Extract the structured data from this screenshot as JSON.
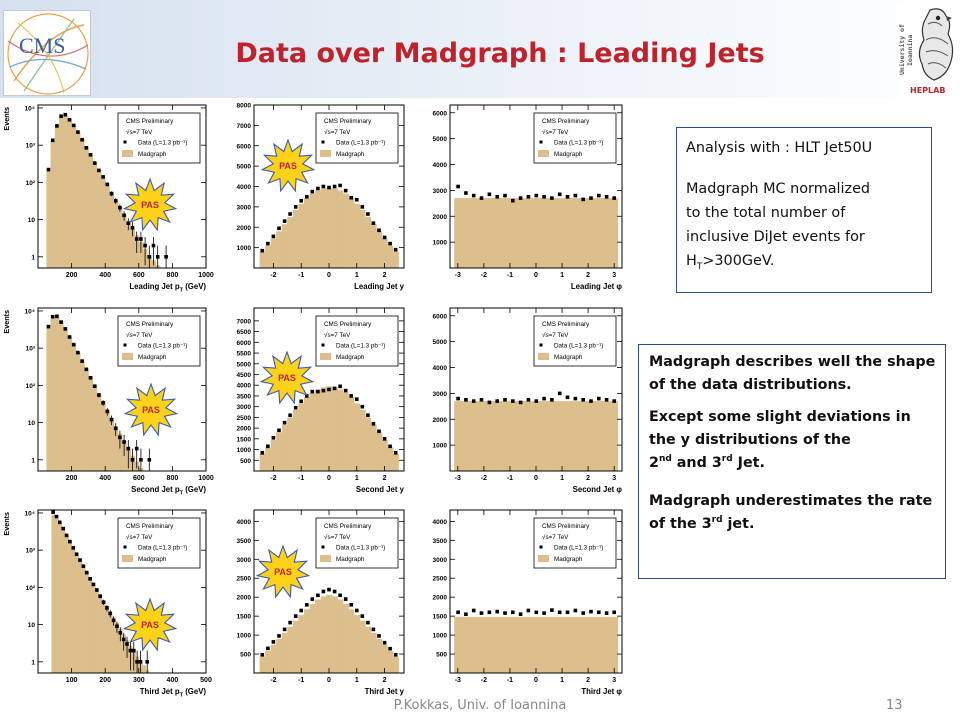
{
  "title": "Data over Madgraph : Leading Jets",
  "logos": {
    "left": "CMS",
    "right_vertical": "University of Ioannina",
    "right_lab": "HEPLAB"
  },
  "legend": {
    "header": "CMS Preliminary",
    "energy": "√s=7 TeV",
    "data": "Data (L=1.3 pb⁻¹)",
    "mc": "Madgraph"
  },
  "stamp_label": "PAS",
  "info_box": {
    "line1": "Analysis with : HLT Jet50U",
    "line2": "Madgraph MC normalized",
    "line3": "to the total number of",
    "line4": "inclusive DiJet events for",
    "line5_prefix": "H",
    "line5_sub": "T",
    "line5_rest": ">300GeV."
  },
  "desc_box": {
    "p1": "Madgraph describes well the shape of the data distributions.",
    "p2_a": "Except some slight deviations in the y distributions of the",
    "p2_b_pre": "2",
    "p2_b_sup1": "nd",
    "p2_b_mid": " and 3",
    "p2_b_sup2": "rd",
    "p2_b_post": " Jet.",
    "p3_a": "Madgraph underestimates the rate of the 3",
    "p3_sup": "rd",
    "p3_post": " jet."
  },
  "footer": {
    "author": "P.Kokkas, Univ. of Ioannina",
    "page": "13"
  },
  "colors": {
    "title": "#c0222b",
    "mc_fill": "#dcbf8c",
    "data_marker": "#000000",
    "stamp_fill": "#ffd21a",
    "stamp_stroke": "#3a5bb0",
    "box_border": "#2b4b8c"
  },
  "chart_data": [
    {
      "type": "histogram",
      "row": 0,
      "col": 0,
      "log_y": true,
      "ylabel": "Events",
      "xlabel": "Leading Jet p",
      "xlabel_sub": "T",
      "xlabel_unit": " (GeV)",
      "xlim": [
        0,
        1000
      ],
      "ylim": [
        0.5,
        12000
      ],
      "xticks": [
        200,
        400,
        600,
        800,
        1000
      ],
      "yticks": [
        {
          "v": 1,
          "t": "1"
        },
        {
          "v": 10,
          "t": "10"
        },
        {
          "v": 100,
          "t": "10²"
        },
        {
          "v": 1000,
          "t": "10³"
        },
        {
          "v": 10000,
          "t": "10⁴"
        }
      ],
      "bin_edges": [
        50,
        75,
        100,
        125,
        150,
        175,
        200,
        225,
        250,
        275,
        300,
        325,
        350,
        375,
        400,
        425,
        450,
        475,
        500,
        525,
        550,
        575,
        600,
        625,
        650,
        675,
        700,
        725,
        750,
        775,
        800
      ],
      "mc": [
        200,
        1300,
        3200,
        5600,
        6300,
        5000,
        3500,
        2300,
        1450,
        900,
        560,
        350,
        215,
        135,
        85,
        54,
        34,
        22,
        14,
        9,
        5.8,
        3.8,
        2.5,
        1.6,
        1.1,
        0.8,
        0.6,
        0.5,
        0.5,
        0.5
      ],
      "data": [
        220,
        1350,
        3300,
        6000,
        6600,
        4800,
        3400,
        2250,
        1400,
        850,
        550,
        330,
        210,
        140,
        88,
        50,
        32,
        21,
        13,
        8,
        6,
        3,
        3,
        2,
        1,
        2,
        1,
        0,
        1,
        0
      ],
      "stamp": [
        150,
        205
      ]
    },
    {
      "type": "histogram",
      "row": 0,
      "col": 1,
      "log_y": false,
      "ylabel": "",
      "xlabel": "Leading Jet y",
      "xlabel_sub": "",
      "xlabel_unit": "",
      "xlim": [
        -2.7,
        2.7
      ],
      "ylim": [
        0,
        8000
      ],
      "xticks": [
        -2,
        -1,
        0,
        1,
        2
      ],
      "yticks": [
        {
          "v": 1000,
          "t": "1000"
        },
        {
          "v": 2000,
          "t": "2000"
        },
        {
          "v": 3000,
          "t": "3000"
        },
        {
          "v": 4000,
          "t": "4000"
        },
        {
          "v": 5000,
          "t": "5000"
        },
        {
          "v": 6000,
          "t": "6000"
        },
        {
          "v": 7000,
          "t": "7000"
        },
        {
          "v": 8000,
          "t": "8000"
        }
      ],
      "bin_edges": [
        -2.5,
        -2.3,
        -2.1,
        -1.9,
        -1.7,
        -1.5,
        -1.3,
        -1.1,
        -0.9,
        -0.7,
        -0.5,
        -0.3,
        -0.1,
        0.1,
        0.3,
        0.5,
        0.7,
        0.9,
        1.1,
        1.3,
        1.5,
        1.7,
        1.9,
        2.1,
        2.3,
        2.5
      ],
      "mc": [
        800,
        1100,
        1450,
        1800,
        2150,
        2500,
        2850,
        3150,
        3450,
        3650,
        3800,
        3900,
        3920,
        3900,
        3800,
        3650,
        3450,
        3150,
        2850,
        2500,
        2150,
        1800,
        1450,
        1100,
        800
      ],
      "data": [
        850,
        1200,
        1550,
        1950,
        2300,
        2650,
        3000,
        3300,
        3500,
        3750,
        3900,
        4000,
        3950,
        4000,
        4050,
        3800,
        3450,
        3350,
        3000,
        2650,
        2200,
        1850,
        1500,
        1200,
        900
      ],
      "stamp": [
        288,
        166
      ]
    },
    {
      "type": "histogram",
      "row": 0,
      "col": 2,
      "log_y": false,
      "ylabel": "",
      "xlabel": "Leading Jet φ",
      "xlabel_sub": "",
      "xlabel_unit": "",
      "xlim": [
        -3.3,
        3.3
      ],
      "ylim": [
        0,
        6300
      ],
      "xticks": [
        -3,
        -2,
        -1,
        0,
        1,
        2,
        3
      ],
      "yticks": [
        {
          "v": 1000,
          "t": "1000"
        },
        {
          "v": 2000,
          "t": "2000"
        },
        {
          "v": 3000,
          "t": "3000"
        },
        {
          "v": 4000,
          "t": "4000"
        },
        {
          "v": 5000,
          "t": "5000"
        },
        {
          "v": 6000,
          "t": "6000"
        }
      ],
      "bin_edges": [
        -3.14,
        -2.84,
        -2.54,
        -2.24,
        -1.94,
        -1.64,
        -1.34,
        -1.04,
        -0.74,
        -0.44,
        -0.14,
        0.16,
        0.46,
        0.76,
        1.06,
        1.36,
        1.66,
        1.96,
        2.26,
        2.56,
        2.86,
        3.14
      ],
      "mc": [
        2700,
        2700,
        2700,
        2700,
        2700,
        2700,
        2700,
        2700,
        2700,
        2700,
        2700,
        2700,
        2700,
        2700,
        2700,
        2700,
        2700,
        2700,
        2700,
        2700,
        2700
      ],
      "data": [
        3150,
        2900,
        2800,
        2700,
        2850,
        2750,
        2800,
        2600,
        2700,
        2750,
        2800,
        2750,
        2700,
        2850,
        2750,
        2800,
        2650,
        2700,
        2800,
        2750,
        2700
      ],
      "stamp": null
    },
    {
      "type": "histogram",
      "row": 1,
      "col": 0,
      "log_y": true,
      "ylabel": "Events",
      "xlabel": "Second Jet p",
      "xlabel_sub": "T",
      "xlabel_unit": " (GeV)",
      "xlim": [
        0,
        1000
      ],
      "ylim": [
        0.5,
        12000
      ],
      "xticks": [
        200,
        400,
        600,
        800,
        1000
      ],
      "yticks": [
        {
          "v": 1,
          "t": "1"
        },
        {
          "v": 10,
          "t": "10"
        },
        {
          "v": 100,
          "t": "10²"
        },
        {
          "v": 1000,
          "t": "10³"
        },
        {
          "v": 10000,
          "t": "10⁴"
        }
      ],
      "bin_edges": [
        50,
        75,
        100,
        125,
        150,
        175,
        200,
        225,
        250,
        275,
        300,
        325,
        350,
        375,
        400,
        425,
        450,
        475,
        500,
        525,
        550,
        575,
        600,
        625,
        650,
        675,
        700
      ],
      "mc": [
        3500,
        6500,
        6800,
        5200,
        3400,
        2100,
        1300,
        780,
        470,
        280,
        170,
        100,
        60,
        36,
        22,
        13,
        8,
        5,
        3.2,
        2,
        1.3,
        0.9,
        0.6,
        0.5,
        0.5,
        0.5
      ],
      "data": [
        3800,
        7000,
        7200,
        5000,
        3300,
        2000,
        1250,
        760,
        450,
        270,
        160,
        95,
        55,
        34,
        20,
        12,
        7,
        4,
        3,
        2,
        1,
        2,
        1,
        0,
        1,
        0
      ],
      "stamp": [
        151,
        410
      ]
    },
    {
      "type": "histogram",
      "row": 1,
      "col": 1,
      "log_y": false,
      "ylabel": "",
      "xlabel": "Second Jet y",
      "xlabel_sub": "",
      "xlabel_unit": "",
      "xlim": [
        -2.7,
        2.7
      ],
      "ylim": [
        0,
        7600
      ],
      "xticks": [
        -2,
        -1,
        0,
        1,
        2
      ],
      "yticks": [
        {
          "v": 500,
          "t": "500"
        },
        {
          "v": 1000,
          "t": "1000"
        },
        {
          "v": 1500,
          "t": "1500"
        },
        {
          "v": 2000,
          "t": "2000"
        },
        {
          "v": 2500,
          "t": "2500"
        },
        {
          "v": 3000,
          "t": "3000"
        },
        {
          "v": 3500,
          "t": "3500"
        },
        {
          "v": 4000,
          "t": "4000"
        },
        {
          "v": 4500,
          "t": "4500"
        },
        {
          "v": 5000,
          "t": "5000"
        },
        {
          "v": 5500,
          "t": "5500"
        },
        {
          "v": 6000,
          "t": "6000"
        },
        {
          "v": 6500,
          "t": "6500"
        },
        {
          "v": 7000,
          "t": "7000"
        }
      ],
      "bin_edges": [
        -2.5,
        -2.3,
        -2.1,
        -1.9,
        -1.7,
        -1.5,
        -1.3,
        -1.1,
        -0.9,
        -0.7,
        -0.5,
        -0.3,
        -0.1,
        0.1,
        0.3,
        0.5,
        0.7,
        0.9,
        1.1,
        1.3,
        1.5,
        1.7,
        1.9,
        2.1,
        2.3,
        2.5
      ],
      "mc": [
        800,
        1100,
        1450,
        1800,
        2150,
        2500,
        2850,
        3150,
        3450,
        3650,
        3800,
        3900,
        3950,
        3900,
        3800,
        3650,
        3450,
        3150,
        2850,
        2500,
        2150,
        1800,
        1450,
        1100,
        800
      ],
      "data": [
        850,
        1150,
        1550,
        1900,
        2250,
        2600,
        2950,
        3250,
        3500,
        3700,
        3700,
        3750,
        3800,
        3850,
        3950,
        3750,
        3500,
        3350,
        3000,
        2600,
        2200,
        1850,
        1500,
        1150,
        850
      ],
      "stamp": [
        287,
        378
      ]
    },
    {
      "type": "histogram",
      "row": 1,
      "col": 2,
      "log_y": false,
      "ylabel": "",
      "xlabel": "Second Jet φ",
      "xlabel_sub": "",
      "xlabel_unit": "",
      "xlim": [
        -3.3,
        3.3
      ],
      "ylim": [
        0,
        6300
      ],
      "xticks": [
        -3,
        -2,
        -1,
        0,
        1,
        2,
        3
      ],
      "yticks": [
        {
          "v": 1000,
          "t": "1000"
        },
        {
          "v": 2000,
          "t": "2000"
        },
        {
          "v": 3000,
          "t": "3000"
        },
        {
          "v": 4000,
          "t": "4000"
        },
        {
          "v": 5000,
          "t": "5000"
        },
        {
          "v": 6000,
          "t": "6000"
        }
      ],
      "bin_edges": [
        -3.14,
        -2.84,
        -2.54,
        -2.24,
        -1.94,
        -1.64,
        -1.34,
        -1.04,
        -0.74,
        -0.44,
        -0.14,
        0.16,
        0.46,
        0.76,
        1.06,
        1.36,
        1.66,
        1.96,
        2.26,
        2.56,
        2.86,
        3.14
      ],
      "mc": [
        2700,
        2700,
        2700,
        2700,
        2700,
        2700,
        2700,
        2700,
        2700,
        2700,
        2700,
        2700,
        2700,
        2700,
        2700,
        2700,
        2700,
        2700,
        2700,
        2700,
        2700
      ],
      "data": [
        2800,
        2750,
        2700,
        2750,
        2650,
        2700,
        2750,
        2700,
        2650,
        2750,
        2700,
        2800,
        2750,
        3000,
        2850,
        2800,
        2750,
        2700,
        2800,
        2750,
        2700
      ],
      "stamp": null
    },
    {
      "type": "histogram",
      "row": 2,
      "col": 0,
      "log_y": true,
      "ylabel": "Events",
      "xlabel": "Third Jet p",
      "xlabel_sub": "T",
      "xlabel_unit": " (GeV)",
      "xlim": [
        0,
        500
      ],
      "ylim": [
        0.5,
        12000
      ],
      "xticks": [
        100,
        200,
        300,
        400,
        500
      ],
      "yticks": [
        {
          "v": 1,
          "t": "1"
        },
        {
          "v": 10,
          "t": "10"
        },
        {
          "v": 100,
          "t": "10²"
        },
        {
          "v": 1000,
          "t": "10³"
        },
        {
          "v": 10000,
          "t": "10⁴"
        }
      ],
      "bin_edges": [
        40,
        50,
        60,
        70,
        80,
        90,
        100,
        110,
        120,
        130,
        140,
        150,
        160,
        170,
        180,
        190,
        200,
        210,
        220,
        230,
        240,
        250,
        260,
        270,
        280,
        290,
        300,
        310,
        320,
        330,
        340,
        350
      ],
      "mc": [
        9000,
        7000,
        5000,
        3500,
        2400,
        1650,
        1150,
        800,
        560,
        390,
        270,
        190,
        130,
        92,
        64,
        45,
        32,
        22,
        15.5,
        11,
        7.7,
        5.4,
        3.8,
        2.7,
        1.9,
        1.4,
        1,
        0.8,
        0.6,
        0.5,
        0.5
      ],
      "data": [
        10500,
        8000,
        5600,
        3800,
        2500,
        1700,
        1150,
        780,
        540,
        370,
        250,
        170,
        120,
        85,
        58,
        40,
        28,
        20,
        13,
        9,
        6,
        4,
        3,
        2,
        2,
        1,
        1,
        0,
        1,
        0,
        0
      ],
      "stamp": [
        150,
        625
      ]
    },
    {
      "type": "histogram",
      "row": 2,
      "col": 1,
      "log_y": false,
      "ylabel": "",
      "xlabel": "Third Jet y",
      "xlabel_sub": "",
      "xlabel_unit": "",
      "xlim": [
        -2.7,
        2.7
      ],
      "ylim": [
        0,
        4300
      ],
      "xticks": [
        -2,
        -1,
        0,
        1,
        2
      ],
      "yticks": [
        {
          "v": 500,
          "t": "500"
        },
        {
          "v": 1000,
          "t": "1000"
        },
        {
          "v": 1500,
          "t": "1500"
        },
        {
          "v": 2000,
          "t": "2000"
        },
        {
          "v": 2500,
          "t": "2500"
        },
        {
          "v": 3000,
          "t": "3000"
        },
        {
          "v": 3500,
          "t": "3500"
        },
        {
          "v": 4000,
          "t": "4000"
        }
      ],
      "bin_edges": [
        -2.5,
        -2.3,
        -2.1,
        -1.9,
        -1.7,
        -1.5,
        -1.3,
        -1.1,
        -0.9,
        -0.7,
        -0.5,
        -0.3,
        -0.1,
        0.1,
        0.3,
        0.5,
        0.7,
        0.9,
        1.1,
        1.3,
        1.5,
        1.7,
        1.9,
        2.1,
        2.3,
        2.5
      ],
      "mc": [
        430,
        580,
        740,
        900,
        1060,
        1220,
        1380,
        1530,
        1680,
        1820,
        1940,
        2020,
        2060,
        2020,
        1940,
        1820,
        1680,
        1530,
        1380,
        1220,
        1060,
        900,
        740,
        580,
        430
      ],
      "data": [
        480,
        650,
        820,
        980,
        1150,
        1330,
        1500,
        1650,
        1800,
        1950,
        2050,
        2150,
        2200,
        2150,
        2050,
        1950,
        1800,
        1650,
        1500,
        1330,
        1150,
        980,
        800,
        640,
        480
      ],
      "stamp": [
        283,
        572
      ]
    },
    {
      "type": "histogram",
      "row": 2,
      "col": 2,
      "log_y": false,
      "ylabel": "",
      "xlabel": "Third Jet φ",
      "xlabel_sub": "",
      "xlabel_unit": "",
      "xlim": [
        -3.3,
        3.3
      ],
      "ylim": [
        0,
        4300
      ],
      "xticks": [
        -3,
        -2,
        -1,
        0,
        1,
        2,
        3
      ],
      "yticks": [
        {
          "v": 500,
          "t": "500"
        },
        {
          "v": 1000,
          "t": "1000"
        },
        {
          "v": 1500,
          "t": "1500"
        },
        {
          "v": 2000,
          "t": "2000"
        },
        {
          "v": 2500,
          "t": "2500"
        },
        {
          "v": 3000,
          "t": "3000"
        },
        {
          "v": 3500,
          "t": "3500"
        },
        {
          "v": 4000,
          "t": "4000"
        }
      ],
      "bin_edges": [
        -3.14,
        -2.84,
        -2.54,
        -2.24,
        -1.94,
        -1.64,
        -1.34,
        -1.04,
        -0.74,
        -0.44,
        -0.14,
        0.16,
        0.46,
        0.76,
        1.06,
        1.36,
        1.66,
        1.96,
        2.26,
        2.56,
        2.86,
        3.14
      ],
      "mc": [
        1480,
        1480,
        1480,
        1480,
        1480,
        1480,
        1480,
        1480,
        1480,
        1480,
        1480,
        1480,
        1480,
        1480,
        1480,
        1480,
        1480,
        1480,
        1480,
        1480,
        1480
      ],
      "data": [
        1600,
        1550,
        1650,
        1580,
        1600,
        1620,
        1580,
        1600,
        1550,
        1650,
        1600,
        1580,
        1660,
        1600,
        1600,
        1650,
        1580,
        1620,
        1600,
        1580,
        1600
      ],
      "stamp": null
    }
  ]
}
